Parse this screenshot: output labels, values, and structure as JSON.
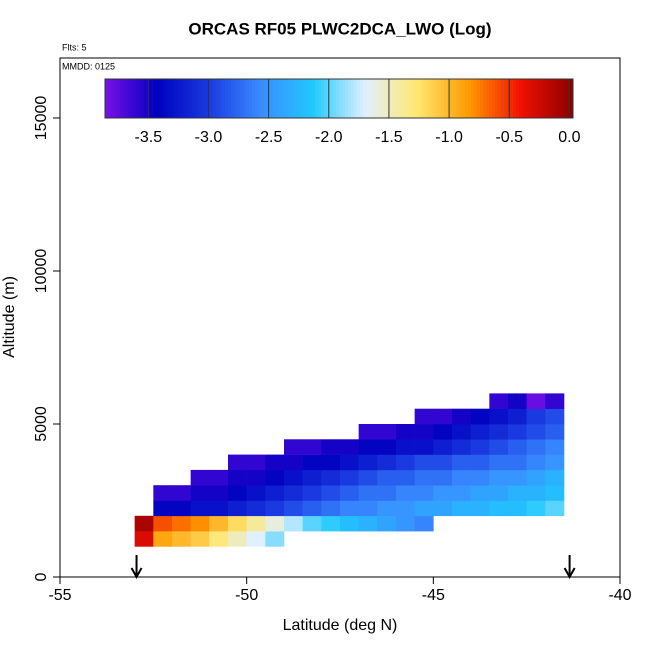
{
  "chart_data": {
    "type": "heatmap",
    "title": "ORCAS RF05 PLWC2DCA_LWO (Log)",
    "flights_note": "Flts: 5",
    "date_note": "MMDD: 0125",
    "xlabel": "Latitude (deg N)",
    "ylabel": "Altitude (m)",
    "xlim": [
      -55,
      -40
    ],
    "ylim": [
      0,
      16960
    ],
    "xticks": [
      -55,
      -50,
      -45,
      -40
    ],
    "yticks": [
      0,
      5000,
      10000,
      15000
    ],
    "lat_edges": [
      -53,
      -52.5,
      -52,
      -51.5,
      -51,
      -50.5,
      -50,
      -49.5,
      -49,
      -48.5,
      -48,
      -47.5,
      -47,
      -46.5,
      -46,
      -45.5,
      -45,
      -44.5,
      -44,
      -43.5,
      -43,
      -42.5,
      -42,
      -41.5
    ],
    "alt_edges": [
      1000,
      1500,
      2000,
      2500,
      3000,
      3500,
      4000,
      4500,
      5000,
      5500,
      6000
    ],
    "values": [
      [
        -0.3,
        -0.9,
        -1.0,
        -1.1,
        -1.3,
        -1.5,
        -1.7,
        -1.9,
        null,
        null,
        null,
        null,
        null,
        null,
        null,
        null,
        null,
        null,
        null,
        null,
        null,
        null,
        null
      ],
      [
        -0.1,
        -0.6,
        -0.7,
        -0.8,
        -1.0,
        -1.2,
        -1.4,
        -1.6,
        -1.8,
        -2.0,
        -2.1,
        -2.2,
        -2.3,
        -2.4,
        -2.5,
        -2.6,
        null,
        null,
        null,
        null,
        null,
        null,
        null
      ],
      [
        null,
        -3.4,
        -3.4,
        -3.3,
        -3.3,
        -3.2,
        -3.1,
        -3.0,
        -2.9,
        -2.8,
        -2.7,
        -2.6,
        -2.6,
        -2.5,
        -2.5,
        -2.4,
        -2.4,
        -2.3,
        -2.3,
        -2.2,
        -2.2,
        -2.1,
        -2.0
      ],
      [
        null,
        -3.6,
        -3.6,
        -3.5,
        -3.5,
        -3.4,
        -3.3,
        -3.2,
        -3.1,
        -3.0,
        -2.9,
        -2.8,
        -2.7,
        -2.7,
        -2.6,
        -2.6,
        -2.5,
        -2.5,
        -2.4,
        -2.4,
        -2.3,
        -2.3,
        -2.2
      ],
      [
        null,
        null,
        null,
        -3.6,
        -3.6,
        -3.5,
        -3.5,
        -3.4,
        -3.3,
        -3.2,
        -3.1,
        -3.0,
        -2.9,
        -2.8,
        -2.8,
        -2.7,
        -2.7,
        -2.6,
        -2.6,
        -2.5,
        -2.5,
        -2.4,
        -2.3
      ],
      [
        null,
        null,
        null,
        null,
        null,
        -3.6,
        -3.6,
        -3.5,
        -3.5,
        -3.4,
        -3.4,
        -3.3,
        -3.2,
        -3.1,
        -3.0,
        -2.9,
        -2.9,
        -2.8,
        -2.8,
        -2.7,
        -2.7,
        -2.6,
        -2.5
      ],
      [
        null,
        null,
        null,
        null,
        null,
        null,
        null,
        null,
        -3.6,
        -3.6,
        -3.5,
        -3.5,
        -3.4,
        -3.4,
        -3.3,
        -3.3,
        -3.2,
        -3.1,
        -3.0,
        -2.9,
        -2.8,
        -2.7,
        -2.6
      ],
      [
        null,
        null,
        null,
        null,
        null,
        null,
        null,
        null,
        null,
        null,
        null,
        null,
        -3.6,
        -3.6,
        -3.5,
        -3.5,
        -3.4,
        -3.3,
        -3.2,
        -3.1,
        -3.0,
        -2.9,
        -2.8
      ],
      [
        null,
        null,
        null,
        null,
        null,
        null,
        null,
        null,
        null,
        null,
        null,
        null,
        null,
        null,
        null,
        -3.6,
        -3.6,
        -3.5,
        -3.4,
        -3.3,
        -3.2,
        -3.0,
        -2.9
      ],
      [
        null,
        null,
        null,
        null,
        null,
        null,
        null,
        null,
        null,
        null,
        null,
        null,
        null,
        null,
        null,
        null,
        null,
        null,
        null,
        -3.6,
        -3.5,
        -3.8,
        -3.6
      ]
    ],
    "colorbar": {
      "lim": [
        -3.86,
        0.03
      ],
      "ticks": [
        -3.5,
        {
          "value": -3,
          "label": "-3.0"
        },
        -2.5,
        {
          "value": -2,
          "label": "-2.0"
        },
        -1.5,
        {
          "value": -1,
          "label": "-1.0"
        },
        -0.5,
        {
          "value": 0,
          "label": "0.0"
        }
      ],
      "colors": [
        "#7a10e8",
        "#0000c0",
        "#1a3ae0",
        "#3a8cff",
        "#20c8ff",
        "#e0f0ff",
        "#ffe870",
        "#ff9a00",
        "#f01000",
        "#8b0000"
      ]
    },
    "arrows": [
      -52.95,
      -41.35
    ]
  }
}
